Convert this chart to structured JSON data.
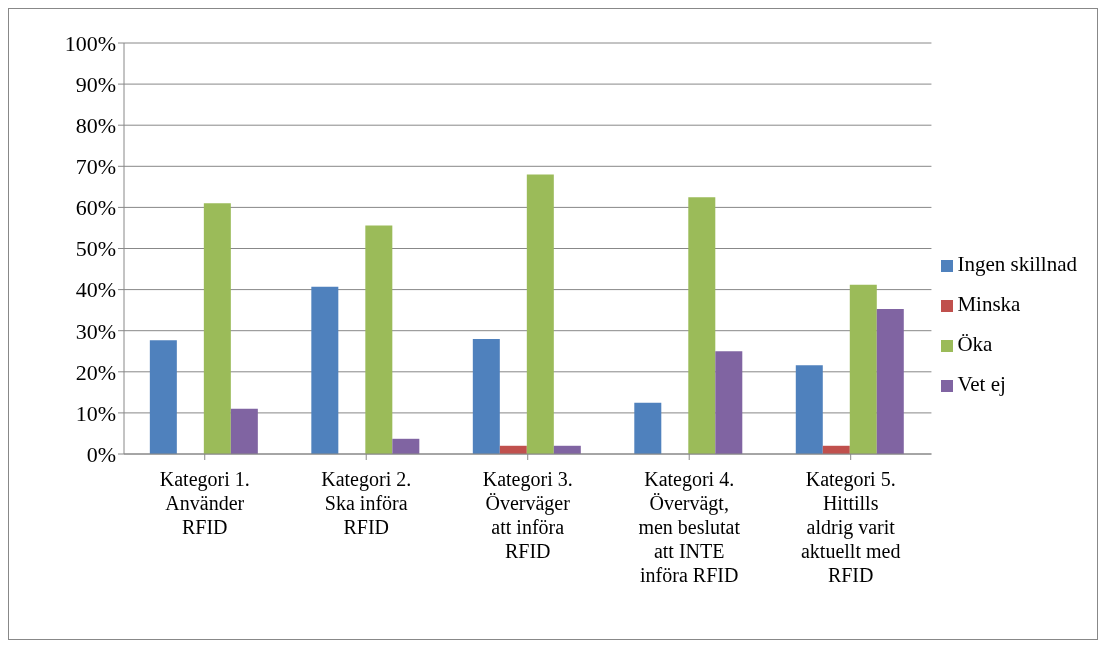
{
  "chart_data": {
    "type": "bar",
    "categories": [
      "Kategori 1. Använder RFID",
      "Kategori 2. Ska införa RFID",
      "Kategori 3. Överväger att införa RFID",
      "Kategori 4. Övervägt, men beslutat att INTE införa RFID",
      "Kategori 5. Hittills aldrig varit aktuellt med RFID"
    ],
    "series": [
      {
        "name": "Ingen skillnad",
        "color": "#4f81bd",
        "values": [
          27.7,
          40.7,
          28,
          12.5,
          21.6
        ]
      },
      {
        "name": "Minska",
        "color": "#c0504d",
        "values": [
          0,
          0,
          2,
          0,
          2
        ]
      },
      {
        "name": "Öka",
        "color": "#9bbb59",
        "values": [
          61,
          55.6,
          68,
          62.5,
          41.2
        ]
      },
      {
        "name": "Vet ej",
        "color": "#8064a2",
        "values": [
          11,
          3.7,
          2,
          25,
          35.3
        ]
      }
    ],
    "ylim": [
      0,
      100
    ],
    "yticks": [
      {
        "value": 0,
        "label": "0%"
      },
      {
        "value": 10,
        "label": "10%"
      },
      {
        "value": 20,
        "label": "20%"
      },
      {
        "value": 30,
        "label": "30%"
      },
      {
        "value": 40,
        "label": "40%"
      },
      {
        "value": 50,
        "label": "50%"
      },
      {
        "value": 60,
        "label": "60%"
      },
      {
        "value": 70,
        "label": "70%"
      },
      {
        "value": 80,
        "label": "80%"
      },
      {
        "value": 90,
        "label": "90%"
      },
      {
        "value": 100,
        "label": "100%"
      }
    ],
    "grid": "y",
    "legend": "right"
  }
}
